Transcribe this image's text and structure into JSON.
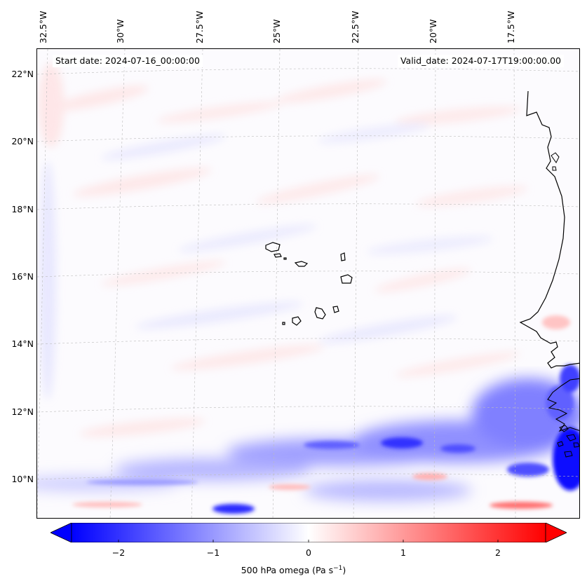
{
  "map": {
    "start_label": "Start date: 2024-07-16_00:00:00",
    "valid_label": "Valid_date: 2024-07-17T19:00:00.00",
    "variable": "500 hPa omega",
    "units_prefix": "500 hPa omega (Pa s",
    "units_exp": "−1",
    "units_suffix": ")",
    "lon_ticks": [
      "32.5°W",
      "30°W",
      "27.5°W",
      "25°W",
      "22.5°W",
      "20°W",
      "17.5°W"
    ],
    "lat_ticks": [
      "22°N",
      "20°N",
      "18°N",
      "16°N",
      "14°N",
      "12°N",
      "10°N"
    ],
    "colormap": "bwr",
    "colors": {
      "negative": "#0000ff",
      "zero": "#ffffff",
      "positive": "#ff0000",
      "coast": "#000000"
    },
    "features": [
      "Cape Verde islands",
      "West African coast (Senegal, Gambia, Guinea-Bissau)"
    ]
  },
  "colorbar": {
    "range": [
      -2.5,
      2.5
    ],
    "extend": "both",
    "tick_values": [
      -2,
      -1,
      0,
      1,
      2
    ],
    "tick_labels": [
      "−2",
      "−1",
      "0",
      "1",
      "2"
    ]
  }
}
